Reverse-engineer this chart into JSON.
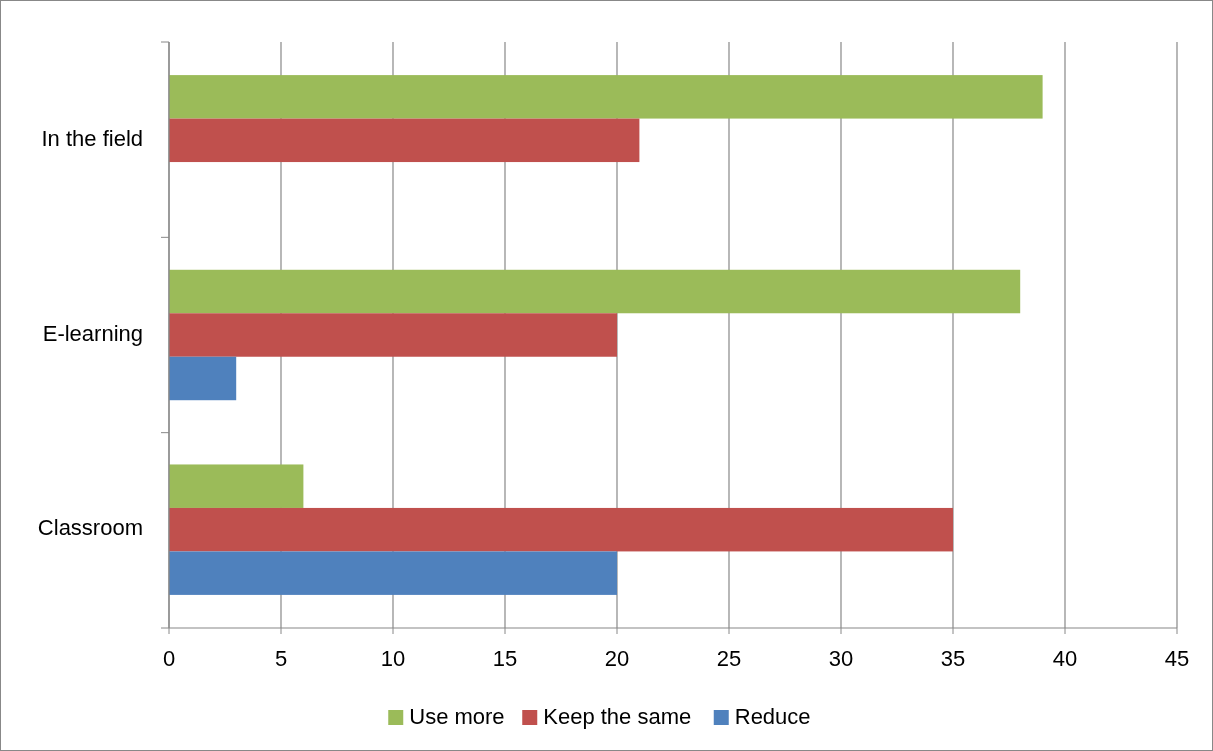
{
  "chart_data": {
    "type": "bar",
    "orientation": "horizontal",
    "categories": [
      "In the field",
      "E-learning",
      "Classroom"
    ],
    "series": [
      {
        "name": "Use more",
        "color": "#9bbb59",
        "values": [
          39,
          38,
          6
        ]
      },
      {
        "name": "Keep the same",
        "color": "#c0504d",
        "values": [
          21,
          20,
          35
        ]
      },
      {
        "name": "Reduce",
        "color": "#4f81bd",
        "values": [
          0,
          3,
          20
        ]
      }
    ],
    "xlim": [
      0,
      45
    ],
    "xticks": [
      0,
      5,
      10,
      15,
      20,
      25,
      30,
      35,
      40,
      45
    ],
    "grid": "x",
    "legend": "bottom"
  }
}
